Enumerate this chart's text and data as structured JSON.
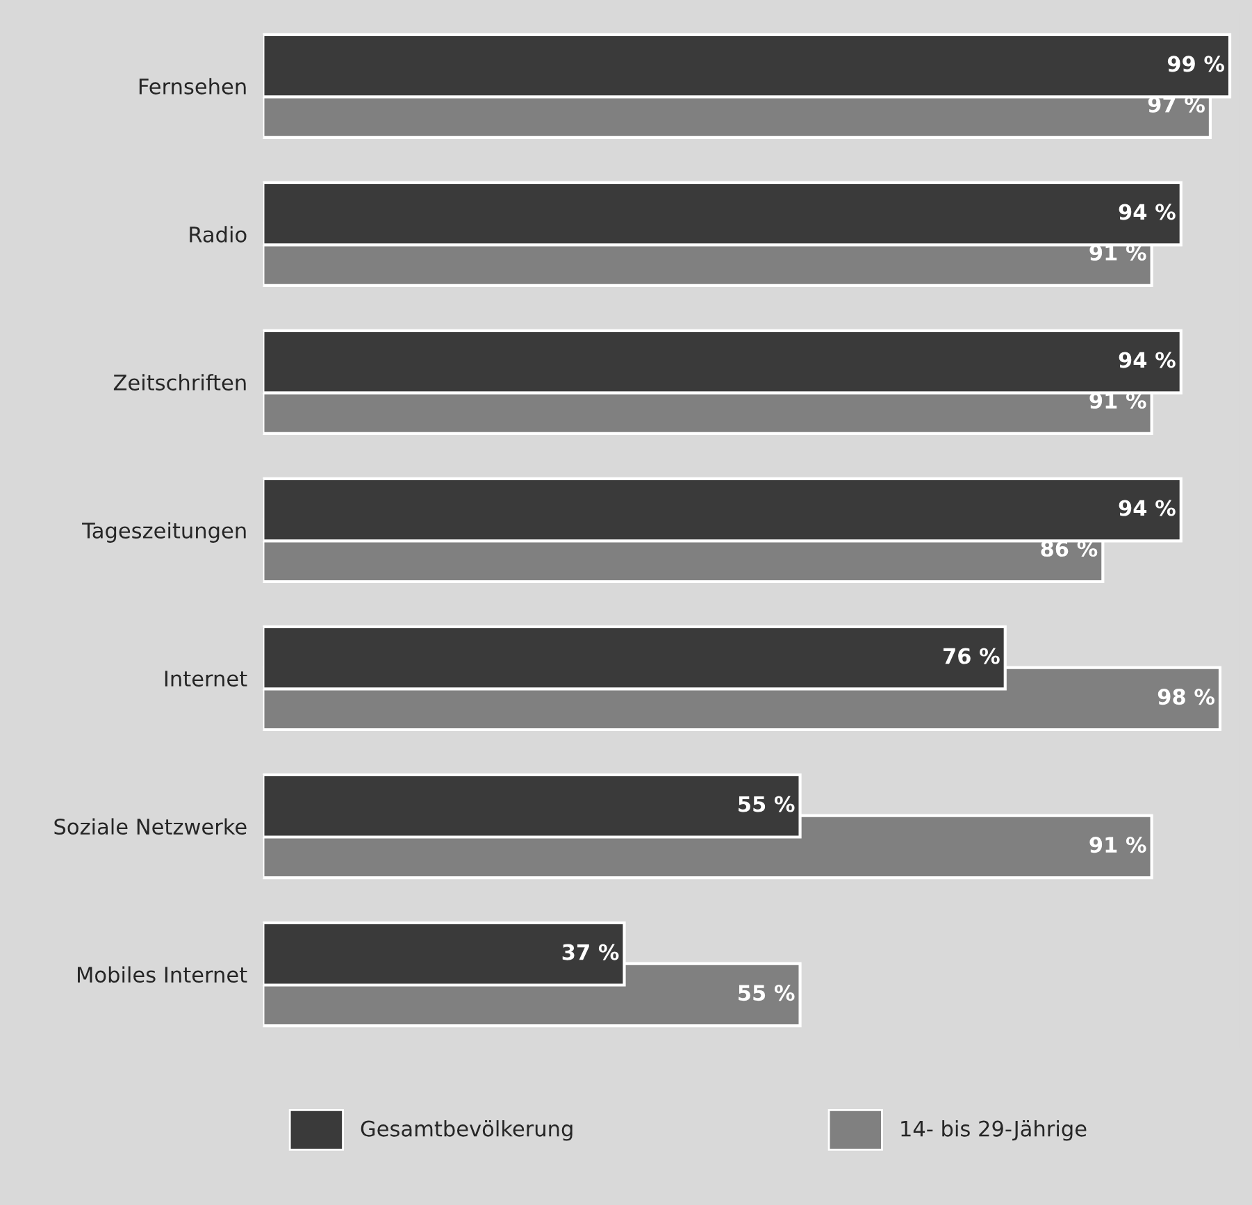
{
  "chart_data": {
    "type": "bar",
    "orientation": "horizontal",
    "categories": [
      "Fernsehen",
      "Radio",
      "Zeitschriften",
      "Tageszeitungen",
      "Internet",
      "Soziale Netzwerke",
      "Mobiles Internet"
    ],
    "series": [
      {
        "name": "Gesamtbevölkerung",
        "color": "#3a3a3a",
        "values": [
          99,
          94,
          94,
          94,
          76,
          55,
          37
        ],
        "value_labels": [
          "99 %",
          "94 %",
          "94 %",
          "94 %",
          "76 %",
          "55 %",
          "37 %"
        ]
      },
      {
        "name": "14- bis 29-Jährige",
        "color": "#808080",
        "values": [
          97,
          91,
          91,
          86,
          98,
          91,
          55
        ],
        "value_labels": [
          "97 %",
          "91 %",
          "91 %",
          "86 %",
          "98 %",
          "91 %",
          "55 %"
        ]
      }
    ],
    "legend": "bottom",
    "grid": false
  }
}
